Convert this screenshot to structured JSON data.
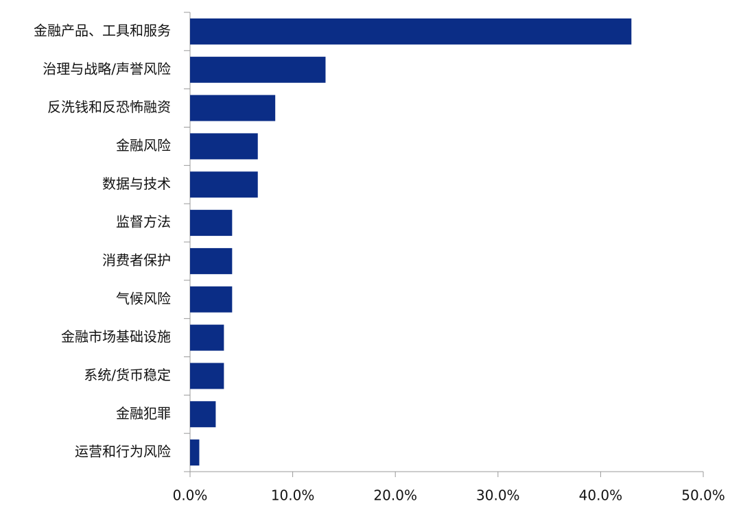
{
  "chart_data": {
    "type": "hbar",
    "categories": [
      "金融产品、工具和服务",
      "治理与战略/声誉风险",
      "反洗钱和反恐怖融资",
      "金融风险",
      "数据与技术",
      "监督方法",
      "消费者保护",
      "气候风险",
      "金融市场基础设施",
      "系统/货币稳定",
      "金融犯罪",
      "运营和行为风险"
    ],
    "values": [
      43.0,
      13.2,
      8.3,
      6.6,
      6.6,
      4.1,
      4.1,
      4.1,
      3.3,
      3.3,
      2.5,
      0.9
    ],
    "color": "#0b2d86",
    "xlim": [
      0,
      50
    ],
    "xticks": [
      {
        "value": 0,
        "label": "0.0%"
      },
      {
        "value": 10,
        "label": "10.0%"
      },
      {
        "value": 20,
        "label": "20.0%"
      },
      {
        "value": 30,
        "label": "30.0%"
      },
      {
        "value": 40,
        "label": "40.0%"
      },
      {
        "value": 50,
        "label": "50.0%"
      }
    ],
    "grid": false
  }
}
